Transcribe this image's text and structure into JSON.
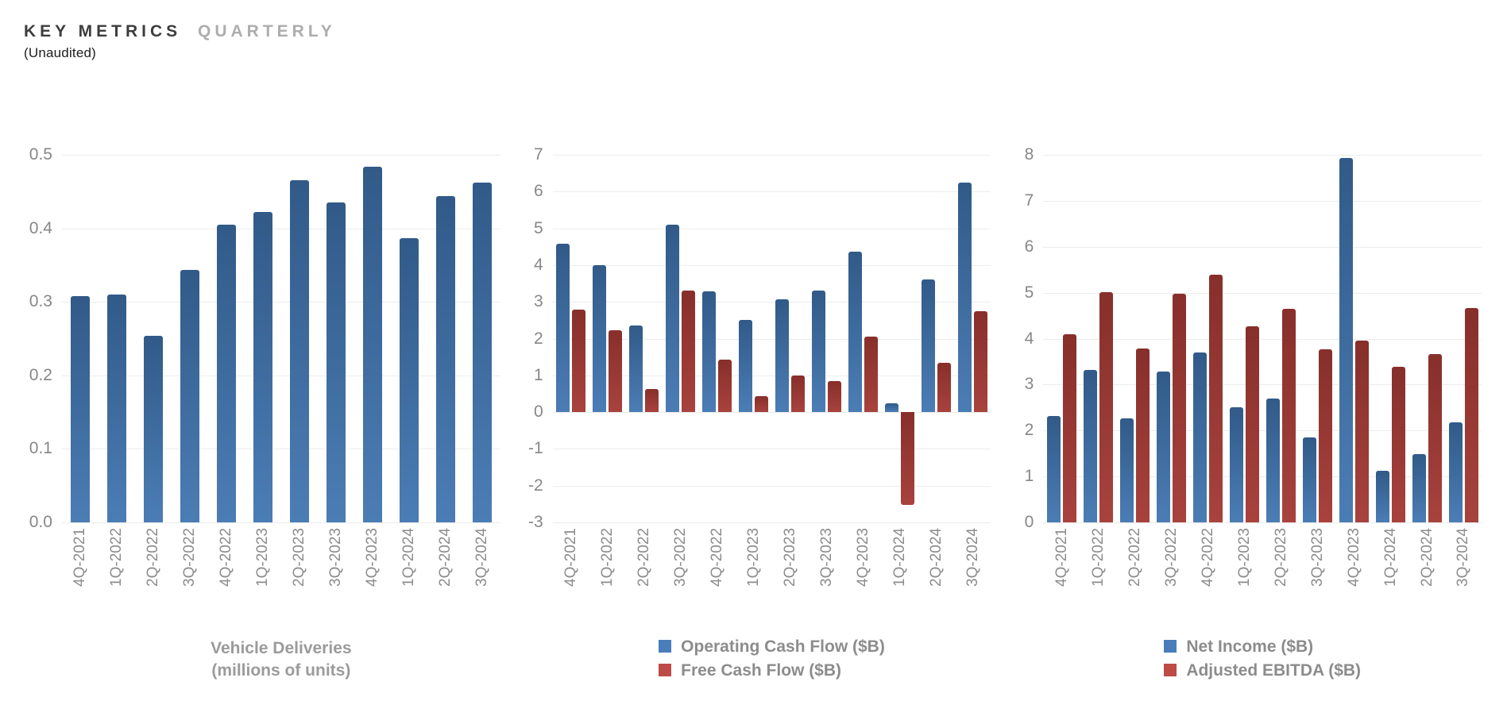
{
  "header": {
    "title_main": "KEY METRICS",
    "title_sub": "QUARTERLY",
    "subtitle": "(Unaudited)"
  },
  "colors": {
    "bar_blue_top": "#315a88",
    "bar_blue_bottom": "#4b7db5",
    "bar_red_top": "#872f2b",
    "bar_red_bottom": "#a8423d",
    "legend_blue": "#4a7ebb",
    "legend_red": "#bf4b47",
    "gridline": "#ececec",
    "axis_text": "#878787",
    "footer_text": "#8c8c8c"
  },
  "categories": [
    "4Q-2021",
    "1Q-2022",
    "2Q-2022",
    "3Q-2022",
    "4Q-2022",
    "1Q-2023",
    "2Q-2023",
    "3Q-2023",
    "4Q-2023",
    "1Q-2024",
    "2Q-2024",
    "3Q-2024"
  ],
  "chart_data": [
    {
      "type": "bar",
      "title": "Vehicle Deliveries",
      "subtitle": "(millions of units)",
      "categories": [
        "4Q-2021",
        "1Q-2022",
        "2Q-2022",
        "3Q-2022",
        "4Q-2022",
        "1Q-2023",
        "2Q-2023",
        "3Q-2023",
        "4Q-2023",
        "1Q-2024",
        "2Q-2024",
        "3Q-2024"
      ],
      "series": [
        {
          "name": "Vehicle Deliveries (millions of units)",
          "color": "blue",
          "values": [
            0.308,
            0.31,
            0.254,
            0.343,
            0.405,
            0.422,
            0.466,
            0.435,
            0.484,
            0.387,
            0.444,
            0.462
          ]
        }
      ],
      "ylim": [
        0,
        0.5
      ],
      "ytick": 0.1,
      "ytick_decimals": 1,
      "grid": true,
      "legend_position": "none"
    },
    {
      "type": "bar",
      "title": "",
      "subtitle": "",
      "categories": [
        "4Q-2021",
        "1Q-2022",
        "2Q-2022",
        "3Q-2022",
        "4Q-2022",
        "1Q-2023",
        "2Q-2023",
        "3Q-2023",
        "4Q-2023",
        "1Q-2024",
        "2Q-2024",
        "3Q-2024"
      ],
      "series": [
        {
          "name": "Operating Cash Flow ($B)",
          "color": "blue",
          "values": [
            4.58,
            3.99,
            2.35,
            5.1,
            3.28,
            2.51,
            3.06,
            3.31,
            4.37,
            0.24,
            3.61,
            6.25
          ]
        },
        {
          "name": "Free Cash Flow ($B)",
          "color": "red",
          "values": [
            2.78,
            2.23,
            0.62,
            3.3,
            1.42,
            0.44,
            1.0,
            0.85,
            2.06,
            -2.53,
            1.34,
            2.74
          ]
        }
      ],
      "ylim": [
        -3,
        7
      ],
      "ytick": 1,
      "ytick_decimals": 0,
      "grid": true,
      "legend_position": "bottom"
    },
    {
      "type": "bar",
      "title": "",
      "subtitle": "",
      "categories": [
        "4Q-2021",
        "1Q-2022",
        "2Q-2022",
        "3Q-2022",
        "4Q-2022",
        "1Q-2023",
        "2Q-2023",
        "3Q-2023",
        "4Q-2023",
        "1Q-2024",
        "2Q-2024",
        "3Q-2024"
      ],
      "series": [
        {
          "name": "Net Income ($B)",
          "color": "blue",
          "values": [
            2.32,
            3.32,
            2.26,
            3.29,
            3.69,
            2.51,
            2.7,
            1.85,
            7.93,
            1.13,
            1.48,
            2.17
          ]
        },
        {
          "name": "Adjusted EBITDA ($B)",
          "color": "red",
          "values": [
            4.09,
            5.02,
            3.79,
            4.97,
            5.4,
            4.27,
            4.65,
            3.76,
            3.95,
            3.38,
            3.67,
            4.67
          ]
        }
      ],
      "ylim": [
        0,
        8
      ],
      "ytick": 1,
      "ytick_decimals": 0,
      "grid": true,
      "legend_position": "bottom"
    }
  ]
}
